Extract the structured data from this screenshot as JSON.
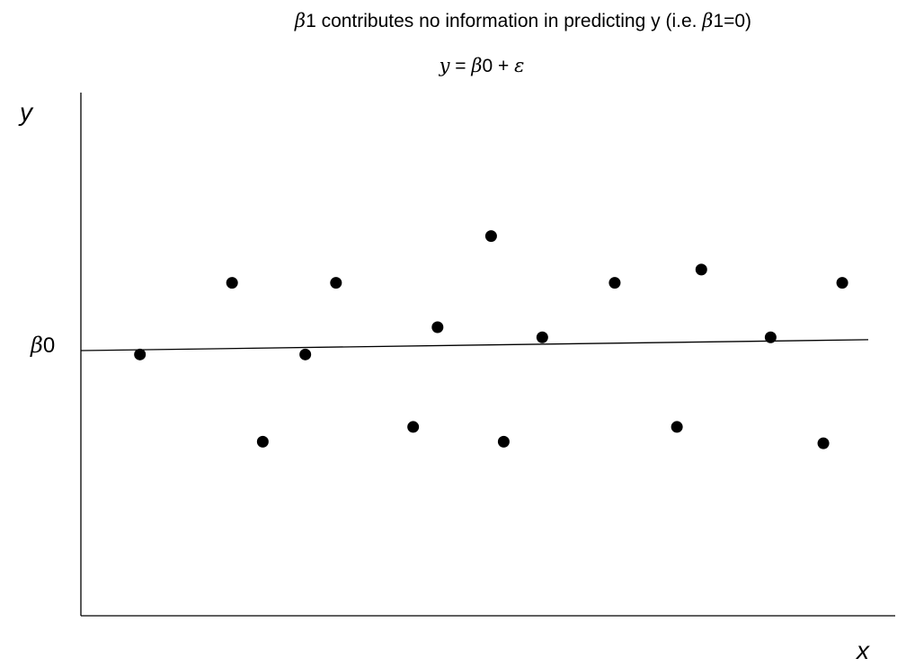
{
  "chart_data": {
    "type": "scatter",
    "title_prefix": "β",
    "title_main": "1 contributes no information in predicting y (i.e. ",
    "title_mid": "β",
    "title_end": "1=0)",
    "subtitle_y": "y",
    "subtitle_eq": " = ",
    "subtitle_beta": "β",
    "subtitle_rest": "0 + ",
    "subtitle_eps": "ε",
    "xlabel": "x",
    "ylabel": "y",
    "y_tick_beta": "β",
    "y_tick_rest": "0",
    "beta0_value": 0,
    "xlim": [
      0,
      10
    ],
    "ylim": [
      -3,
      3
    ],
    "x": [
      0.75,
      1.92,
      2.31,
      2.85,
      3.24,
      4.22,
      4.53,
      5.21,
      5.37,
      5.86,
      6.78,
      7.57,
      7.88,
      8.76,
      9.43,
      9.67
    ],
    "y": [
      -0.05,
      0.87,
      -1.17,
      -0.05,
      0.87,
      -0.98,
      0.3,
      1.47,
      -1.17,
      0.17,
      0.87,
      -0.98,
      1.04,
      0.17,
      -1.19,
      0.87
    ],
    "line": {
      "x": [
        0,
        10
      ],
      "y": [
        0,
        0.14
      ]
    }
  }
}
